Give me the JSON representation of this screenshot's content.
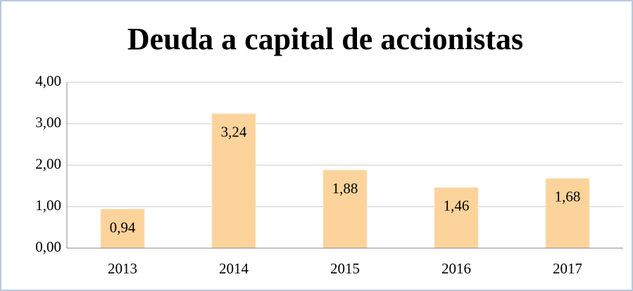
{
  "chart_data": {
    "type": "bar",
    "title": "Deuda a capital de accionistas",
    "categories": [
      "2013",
      "2014",
      "2015",
      "2016",
      "2017"
    ],
    "values": [
      0.94,
      3.24,
      1.88,
      1.46,
      1.68
    ],
    "value_labels": [
      "0,94",
      "3,24",
      "1,88",
      "1,46",
      "1,68"
    ],
    "color": "#fbd39b",
    "ylim": [
      0,
      4
    ],
    "yticks": [
      {
        "value": 0,
        "label": "0,00"
      },
      {
        "value": 1,
        "label": "1,00"
      },
      {
        "value": 2,
        "label": "2,00"
      },
      {
        "value": 3,
        "label": "3,00"
      },
      {
        "value": 4,
        "label": "4,00"
      }
    ],
    "grid": true
  }
}
